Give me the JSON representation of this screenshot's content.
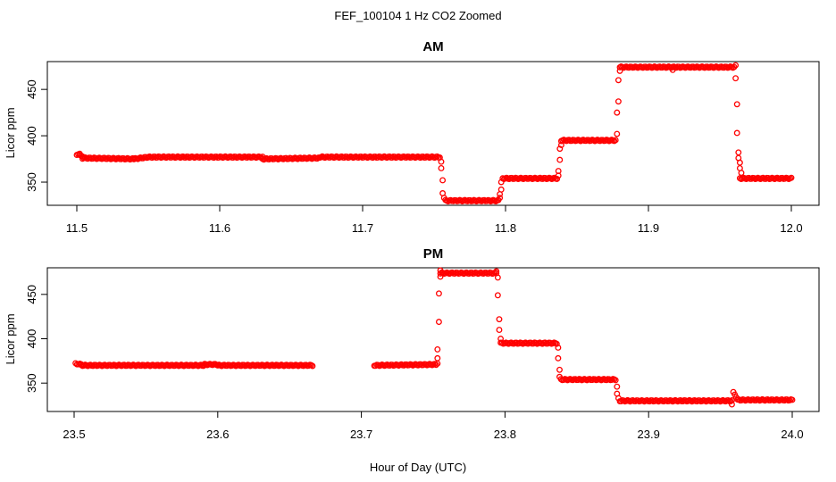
{
  "figure": {
    "title": "FEF_100104  1 Hz CO2 Zoomed",
    "xlabel": "Hour of Day (UTC)"
  },
  "colors": {
    "points": "#ff0000",
    "axes": "#000000"
  },
  "chart_data": [
    {
      "type": "scatter",
      "title": "AM",
      "xlabel": "",
      "ylabel": "Licor ppm",
      "xlim": [
        11.5,
        12.0
      ],
      "ylim": [
        325,
        480
      ],
      "xticks": [
        11.5,
        11.6,
        11.7,
        11.8,
        11.9,
        12.0
      ],
      "xtick_labels": [
        "11.5",
        "11.6",
        "11.7",
        "11.8",
        "11.9",
        "12.0"
      ],
      "yticks": [
        350,
        400,
        450
      ],
      "ytick_labels": [
        "350",
        "400",
        "450"
      ],
      "grid": false,
      "marker": "open-circle",
      "segments": [
        {
          "x": [
            11.5,
            11.502
          ],
          "y": [
            380,
            380
          ]
        },
        {
          "x": [
            11.502,
            11.504
          ],
          "y": [
            380,
            377
          ]
        },
        {
          "x": [
            11.504,
            11.54
          ],
          "y": [
            376,
            375
          ]
        },
        {
          "x": [
            11.54,
            11.55
          ],
          "y": [
            375,
            377
          ]
        },
        {
          "x": [
            11.55,
            11.63
          ],
          "y": [
            377,
            377
          ]
        },
        {
          "x": [
            11.63,
            11.67
          ],
          "y": [
            375,
            376
          ]
        },
        {
          "x": [
            11.67,
            11.754
          ],
          "y": [
            377,
            377
          ]
        },
        {
          "x": [
            11.758,
            11.795
          ],
          "y": [
            330,
            330
          ]
        },
        {
          "x": [
            11.798,
            11.836
          ],
          "y": [
            354,
            354
          ]
        },
        {
          "x": [
            11.839,
            11.877
          ],
          "y": [
            395,
            395
          ]
        },
        {
          "x": [
            11.88,
            11.96
          ],
          "y": [
            474,
            474
          ]
        },
        {
          "x": [
            11.964,
            12.0
          ],
          "y": [
            354,
            354
          ]
        }
      ],
      "transition_points": [
        {
          "x": 11.755,
          "y": 372
        },
        {
          "x": 11.755,
          "y": 365
        },
        {
          "x": 11.756,
          "y": 352
        },
        {
          "x": 11.756,
          "y": 338
        },
        {
          "x": 11.757,
          "y": 333
        },
        {
          "x": 11.796,
          "y": 333
        },
        {
          "x": 11.796,
          "y": 337
        },
        {
          "x": 11.797,
          "y": 342
        },
        {
          "x": 11.797,
          "y": 350
        },
        {
          "x": 11.837,
          "y": 357
        },
        {
          "x": 11.837,
          "y": 362
        },
        {
          "x": 11.838,
          "y": 374
        },
        {
          "x": 11.838,
          "y": 386
        },
        {
          "x": 11.839,
          "y": 390
        },
        {
          "x": 11.878,
          "y": 402
        },
        {
          "x": 11.878,
          "y": 425
        },
        {
          "x": 11.879,
          "y": 437
        },
        {
          "x": 11.879,
          "y": 460
        },
        {
          "x": 11.88,
          "y": 470
        },
        {
          "x": 11.961,
          "y": 476
        },
        {
          "x": 11.961,
          "y": 462
        },
        {
          "x": 11.962,
          "y": 434
        },
        {
          "x": 11.962,
          "y": 403
        },
        {
          "x": 11.963,
          "y": 382
        },
        {
          "x": 11.963,
          "y": 376
        },
        {
          "x": 11.964,
          "y": 371
        },
        {
          "x": 11.964,
          "y": 365
        },
        {
          "x": 11.965,
          "y": 360
        },
        {
          "x": 11.917,
          "y": 471
        }
      ]
    },
    {
      "type": "scatter",
      "title": "PM",
      "xlabel": "Hour of Day (UTC)",
      "ylabel": "Licor ppm",
      "xlim": [
        23.5,
        24.0
      ],
      "ylim": [
        318,
        480
      ],
      "xticks": [
        23.5,
        23.6,
        23.7,
        23.8,
        23.9,
        24.0
      ],
      "xtick_labels": [
        "23.5",
        "23.6",
        "23.7",
        "23.8",
        "23.9",
        "24.0"
      ],
      "yticks": [
        350,
        400,
        450
      ],
      "ytick_labels": [
        "350",
        "400",
        "450"
      ],
      "grid": false,
      "marker": "open-circle",
      "segments": [
        {
          "x": [
            23.501,
            23.505
          ],
          "y": [
            372,
            371
          ]
        },
        {
          "x": [
            23.505,
            23.59
          ],
          "y": [
            370,
            370
          ]
        },
        {
          "x": [
            23.59,
            23.6
          ],
          "y": [
            371,
            371
          ]
        },
        {
          "x": [
            23.6,
            23.666
          ],
          "y": [
            370,
            370
          ]
        },
        {
          "x": [
            23.709,
            23.752
          ],
          "y": [
            370,
            371
          ]
        },
        {
          "x": [
            23.755,
            23.794
          ],
          "y": [
            474,
            474
          ]
        },
        {
          "x": [
            23.797,
            23.836
          ],
          "y": [
            395,
            395
          ]
        },
        {
          "x": [
            23.839,
            23.877
          ],
          "y": [
            354,
            354
          ]
        },
        {
          "x": [
            23.88,
            23.958
          ],
          "y": [
            330,
            330
          ]
        },
        {
          "x": [
            23.962,
            24.0
          ],
          "y": [
            331,
            331
          ]
        }
      ],
      "transition_points": [
        {
          "x": 23.753,
          "y": 372
        },
        {
          "x": 23.753,
          "y": 378
        },
        {
          "x": 23.753,
          "y": 388
        },
        {
          "x": 23.754,
          "y": 419
        },
        {
          "x": 23.754,
          "y": 451
        },
        {
          "x": 23.755,
          "y": 470
        },
        {
          "x": 23.755,
          "y": 477
        },
        {
          "x": 23.794,
          "y": 476
        },
        {
          "x": 23.795,
          "y": 469
        },
        {
          "x": 23.795,
          "y": 449
        },
        {
          "x": 23.796,
          "y": 422
        },
        {
          "x": 23.796,
          "y": 410
        },
        {
          "x": 23.797,
          "y": 400
        },
        {
          "x": 23.837,
          "y": 390
        },
        {
          "x": 23.837,
          "y": 378
        },
        {
          "x": 23.838,
          "y": 365
        },
        {
          "x": 23.838,
          "y": 357
        },
        {
          "x": 23.878,
          "y": 346
        },
        {
          "x": 23.878,
          "y": 338
        },
        {
          "x": 23.879,
          "y": 333
        },
        {
          "x": 23.958,
          "y": 326
        },
        {
          "x": 23.959,
          "y": 340
        },
        {
          "x": 23.96,
          "y": 337
        },
        {
          "x": 23.961,
          "y": 334
        }
      ]
    }
  ]
}
